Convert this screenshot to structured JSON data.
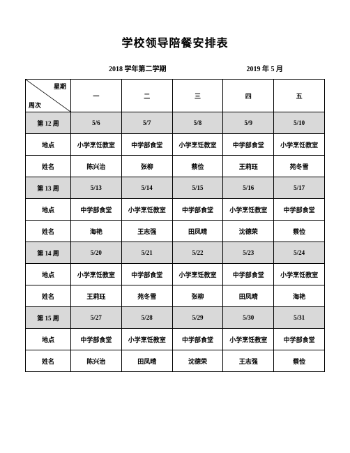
{
  "title": "学校领导陪餐安排表",
  "semester": "2018 学年第二学期",
  "month": "2019 年 5 月",
  "cornerTop": "星期",
  "cornerBottom": "周次",
  "weekdayHeaders": [
    "一",
    "二",
    "三",
    "四",
    "五"
  ],
  "rowLabels": {
    "location": "地点",
    "name": "姓名"
  },
  "weeks": [
    {
      "label": "第 12 周",
      "dates": [
        "5/6",
        "5/7",
        "5/8",
        "5/9",
        "5/10"
      ],
      "locations": [
        "小学烹饪教室",
        "中学部食堂",
        "小学烹饪教室",
        "中学部食堂",
        "小学烹饪教室"
      ],
      "names": [
        "陈兴治",
        "张柳",
        "蔡俭",
        "王莉珏",
        "苑冬雪"
      ]
    },
    {
      "label": "第 13 周",
      "dates": [
        "5/13",
        "5/14",
        "5/15",
        "5/16",
        "5/17"
      ],
      "locations": [
        "中学部食堂",
        "小学烹饪教室",
        "中学部食堂",
        "小学烹饪教室",
        "中学部食堂"
      ],
      "names": [
        "海艳",
        "王志强",
        "田凤晴",
        "沈德荣",
        "蔡俭"
      ]
    },
    {
      "label": "第 14 周",
      "dates": [
        "5/20",
        "5/21",
        "5/22",
        "5/23",
        "5/24"
      ],
      "locations": [
        "小学烹饪教室",
        "中学部食堂",
        "小学烹饪教室",
        "中学部食堂",
        "小学烹饪教室"
      ],
      "names": [
        "王莉珏",
        "苑冬雪",
        "张柳",
        "田凤晴",
        "海艳"
      ]
    },
    {
      "label": "第 15 周",
      "dates": [
        "5/27",
        "5/28",
        "5/29",
        "5/30",
        "5/31"
      ],
      "locations": [
        "中学部食堂",
        "小学烹饪教室",
        "中学部食堂",
        "小学烹饪教室",
        "中学部食堂"
      ],
      "names": [
        "陈兴治",
        "田凤晴",
        "沈德荣",
        "王志强",
        "蔡俭"
      ]
    }
  ]
}
